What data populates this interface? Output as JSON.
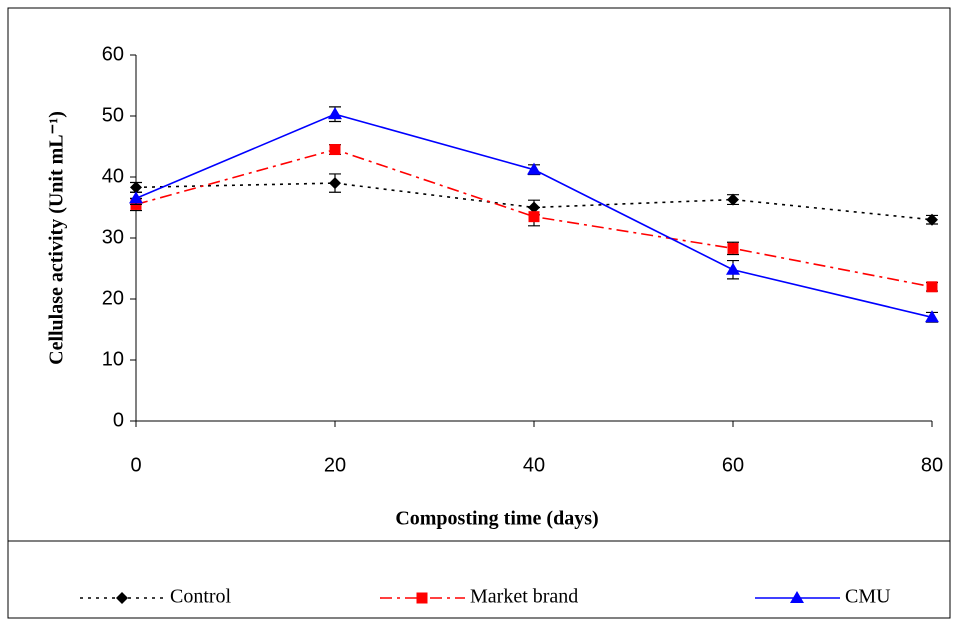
{
  "chart_data": {
    "type": "line",
    "x_label": "Composting time (days)",
    "y_label": "Cellulase activity (Unit mL⁻¹)",
    "x": [
      0,
      20,
      40,
      60,
      80
    ],
    "xlim": [
      0,
      80
    ],
    "xticks": [
      0,
      20,
      40,
      60,
      80
    ],
    "ylim": [
      0,
      60
    ],
    "yticks": [
      0,
      10,
      20,
      30,
      40,
      50,
      60
    ],
    "legend_position": "bottom",
    "series": [
      {
        "name": "Control",
        "color": "#000000",
        "line_style": "dotted",
        "marker": "diamond",
        "values": [
          38.3,
          39,
          35,
          36.3,
          33
        ],
        "errors": [
          0.8,
          1.5,
          1.2,
          0.8,
          0.7
        ]
      },
      {
        "name": "Market brand",
        "color": "#ff0000",
        "line_style": "dashdot",
        "marker": "square",
        "values": [
          35.5,
          44.5,
          33.5,
          28.3,
          22
        ],
        "errors": [
          1,
          0.8,
          1.5,
          1,
          0.7
        ]
      },
      {
        "name": "CMU",
        "color": "#0000ff",
        "line_style": "solid",
        "marker": "triangle",
        "values": [
          36.5,
          50.3,
          41.2,
          24.8,
          17
        ],
        "errors": [
          1,
          1.2,
          0.8,
          1.5,
          0.8
        ]
      }
    ]
  }
}
